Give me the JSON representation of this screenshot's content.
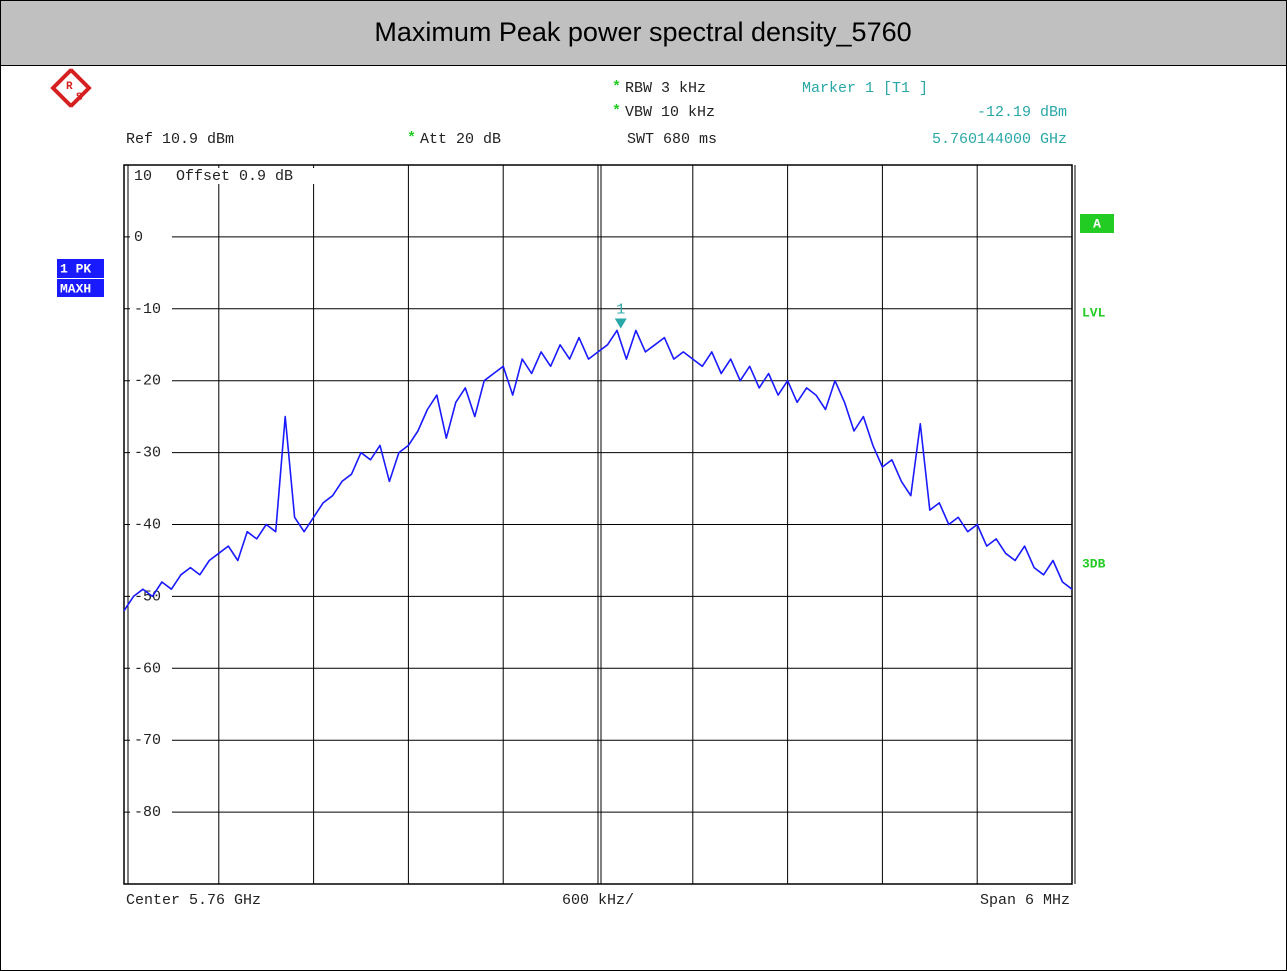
{
  "chart_data": {
    "type": "line",
    "title": "Maximum Peak power spectral density_5760",
    "star": "*",
    "logo": [
      "R",
      "S"
    ],
    "rbw": "RBW 3 kHz",
    "vbw": "VBW 10 kHz",
    "swt": "SWT 680 ms",
    "ref": "Ref 10.9 dBm",
    "att": "Att 20 dB",
    "offset": "Offset 0.9 dB",
    "trace_labels": [
      "1 PK",
      "MAXH"
    ],
    "side_labels": {
      "a": "A",
      "lvl": "LVL",
      "db3": "3DB"
    },
    "center_label": "Center 5.76 GHz",
    "div_label": "600 kHz/",
    "span_label": "Span 6 MHz",
    "marker": {
      "title": "Marker 1 [T1 ]",
      "label": "1",
      "x": 5.760144,
      "x_label": "5.760144000 GHz",
      "y": -12.19,
      "y_label": "-12.19 dBm",
      "color": "#2aa7a7"
    },
    "xlim": [
      5.757,
      5.763
    ],
    "xdivisions": 10,
    "ylim": [
      -90,
      10
    ],
    "yticks": [
      10,
      0,
      -10,
      -20,
      -30,
      -40,
      -50,
      -60,
      -70,
      -80
    ],
    "grid": true,
    "series": [
      {
        "name": "1 PK",
        "color": "#1a1aff",
        "values": [
          -52,
          -50,
          -49,
          -50,
          -48,
          -49,
          -47,
          -46,
          -47,
          -45,
          -44,
          -43,
          -45,
          -41,
          -42,
          -40,
          -41,
          -25,
          -39,
          -41,
          -39,
          -37,
          -36,
          -34,
          -33,
          -30,
          -31,
          -29,
          -34,
          -30,
          -29,
          -27,
          -24,
          -22,
          -28,
          -23,
          -21,
          -25,
          -20,
          -19,
          -18,
          -22,
          -17,
          -19,
          -16,
          -18,
          -15,
          -17,
          -14,
          -17,
          -16,
          -15,
          -13,
          -17,
          -13,
          -16,
          -15,
          -14,
          -17,
          -16,
          -17,
          -18,
          -16,
          -19,
          -17,
          -20,
          -18,
          -21,
          -19,
          -22,
          -20,
          -23,
          -21,
          -22,
          -24,
          -20,
          -23,
          -27,
          -25,
          -29,
          -32,
          -31,
          -34,
          -36,
          -26,
          -38,
          -37,
          -40,
          -39,
          -41,
          -40,
          -43,
          -42,
          -44,
          -45,
          -43,
          -46,
          -47,
          -45,
          -48,
          -49
        ]
      }
    ]
  }
}
